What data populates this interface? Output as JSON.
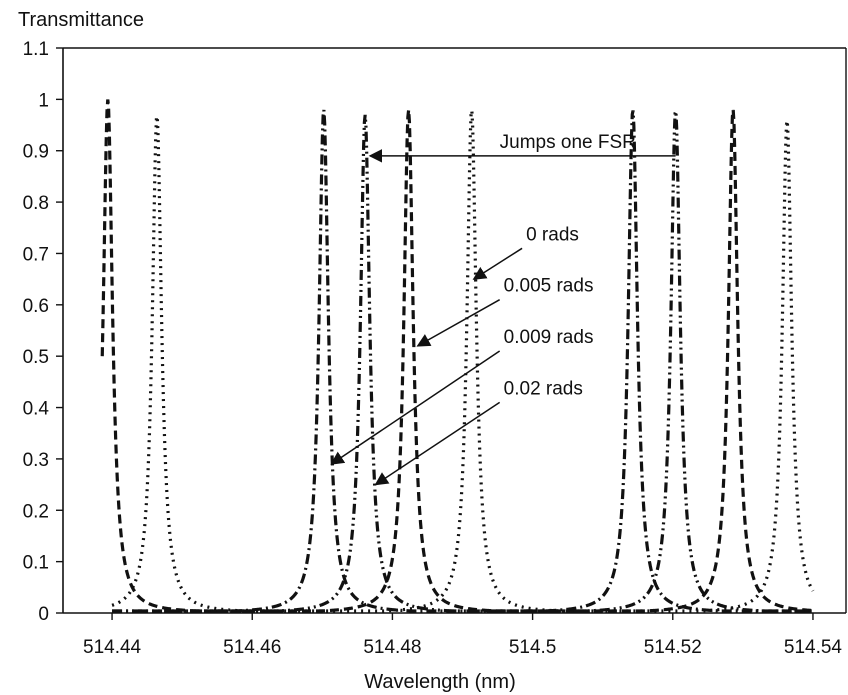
{
  "chart_data": {
    "type": "line",
    "title": "",
    "xlabel": "Wavelength (nm)",
    "ylabel": "Transmittance",
    "xlim": [
      514.433,
      514.545
    ],
    "ylim": [
      0,
      1.1
    ],
    "grid": false,
    "x_ticks": [
      {
        "value": 514.44,
        "label": "514.44"
      },
      {
        "value": 514.46,
        "label": "514.46"
      },
      {
        "value": 514.48,
        "label": "514.48"
      },
      {
        "value": 514.5,
        "label": "514.5"
      },
      {
        "value": 514.52,
        "label": "514.52"
      },
      {
        "value": 514.54,
        "label": "514.54"
      }
    ],
    "y_ticks": [
      {
        "value": 0,
        "label": "0"
      },
      {
        "value": 0.1,
        "label": "0.1"
      },
      {
        "value": 0.2,
        "label": "0.2"
      },
      {
        "value": 0.3,
        "label": "0.3"
      },
      {
        "value": 0.4,
        "label": "0.4"
      },
      {
        "value": 0.5,
        "label": "0.5"
      },
      {
        "value": 0.6,
        "label": "0.6"
      },
      {
        "value": 0.7,
        "label": "0.7"
      },
      {
        "value": 0.8,
        "label": "0.8"
      },
      {
        "value": 0.9,
        "label": "0.9"
      },
      {
        "value": 1,
        "label": "1"
      },
      {
        "value": 1.1,
        "label": "1.1"
      }
    ],
    "series": [
      {
        "name": "0 rads",
        "style": "dotted",
        "peaks": [
          514.4464,
          514.4913,
          514.5363
        ],
        "peak_heights": [
          0.97,
          0.98,
          0.96
        ],
        "hwhm": 0.0008,
        "x_range": [
          514.44,
          514.54
        ]
      },
      {
        "name": "0.005 rads",
        "style": "dashed",
        "peaks": [
          514.4394,
          514.4823,
          514.5286
        ],
        "peak_heights": [
          1.0,
          0.98,
          0.98
        ],
        "hwhm": 0.0008,
        "x_range": [
          514.4386,
          514.54
        ]
      },
      {
        "name": "0.009 rads",
        "style": "dash-dot",
        "peaks": [
          514.4702,
          514.5143
        ],
        "peak_heights": [
          0.98,
          0.98
        ],
        "hwhm": 0.0008,
        "x_range": [
          514.44,
          514.54
        ]
      },
      {
        "name": "0.02 rads",
        "style": "dash-dot-dot",
        "peaks": [
          514.4761,
          514.5204
        ],
        "peak_heights": [
          0.97,
          0.98
        ],
        "hwhm": 0.0008,
        "x_range": [
          514.44,
          514.54
        ]
      }
    ],
    "annotations": [
      {
        "text": "Jumps one FSR",
        "arrow_from": [
          514.5204,
          0.89
        ],
        "arrow_to": [
          514.4768,
          0.89
        ]
      },
      {
        "text": "0 rads",
        "arrow_from": [
          514.4985,
          0.71
        ],
        "arrow_to": [
          514.4916,
          0.65
        ]
      },
      {
        "text": "0.005 rads",
        "arrow_from": [
          514.4953,
          0.61
        ],
        "arrow_to": [
          514.4836,
          0.52
        ]
      },
      {
        "text": "0.009 rads",
        "arrow_from": [
          514.4953,
          0.51
        ],
        "arrow_to": [
          514.4713,
          0.29
        ]
      },
      {
        "text": "0.02 rads",
        "arrow_from": [
          514.4953,
          0.41
        ],
        "arrow_to": [
          514.4776,
          0.25
        ]
      }
    ]
  }
}
